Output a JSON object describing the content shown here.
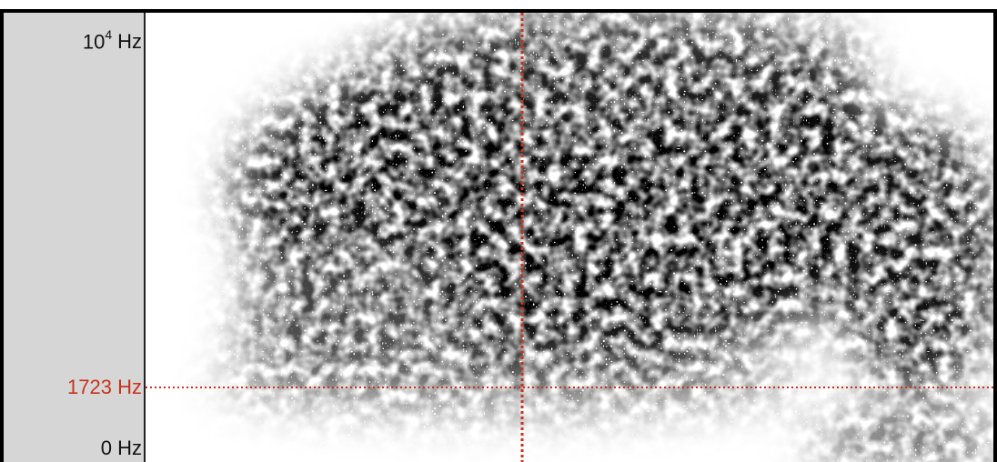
{
  "frequency_axis": {
    "top_label": {
      "base": "10",
      "exponent": "4",
      "unit": "Hz"
    },
    "cursor_label": "1723 Hz",
    "bottom_label": "0 Hz"
  }
}
